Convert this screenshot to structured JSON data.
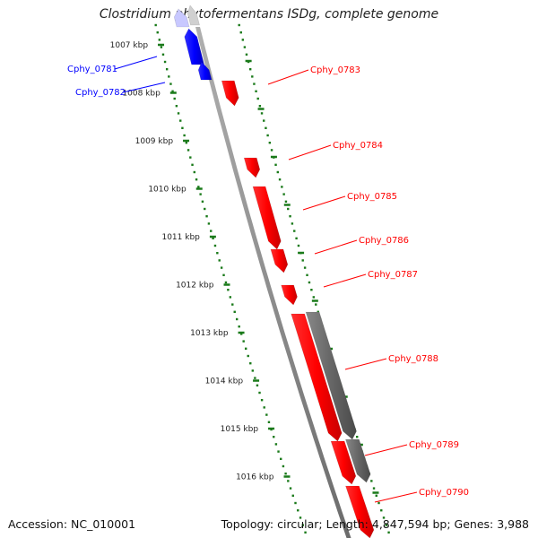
{
  "title": "Clostridium phytofermentans ISDg, complete genome",
  "accession": "Accession: NC_010001",
  "summary": "Topology: circular; Length: 4,847,594 bp; Genes: 3,988",
  "colors": {
    "forward": "#ff0000",
    "reverse": "#0000ff",
    "other": "#666666",
    "backbone": "#8c8c8c",
    "ticks": "#1a7a1a"
  },
  "kbp_labels": [
    "1007 kbp",
    "1008 kbp",
    "1009 kbp",
    "1010 kbp",
    "1011 kbp",
    "1012 kbp",
    "1013 kbp",
    "1014 kbp",
    "1015 kbp",
    "1016 kbp"
  ],
  "genes": [
    {
      "label": "Cphy_0781",
      "strand": "reverse"
    },
    {
      "label": "Cphy_0782",
      "strand": "reverse"
    },
    {
      "label": "Cphy_0783",
      "strand": "forward"
    },
    {
      "label": "Cphy_0784",
      "strand": "forward"
    },
    {
      "label": "Cphy_0785",
      "strand": "forward"
    },
    {
      "label": "Cphy_0786",
      "strand": "forward"
    },
    {
      "label": "Cphy_0787",
      "strand": "forward"
    },
    {
      "label": "Cphy_0788",
      "strand": "forward"
    },
    {
      "label": "Cphy_0789",
      "strand": "forward"
    },
    {
      "label": "Cphy_0790",
      "strand": "forward"
    }
  ]
}
